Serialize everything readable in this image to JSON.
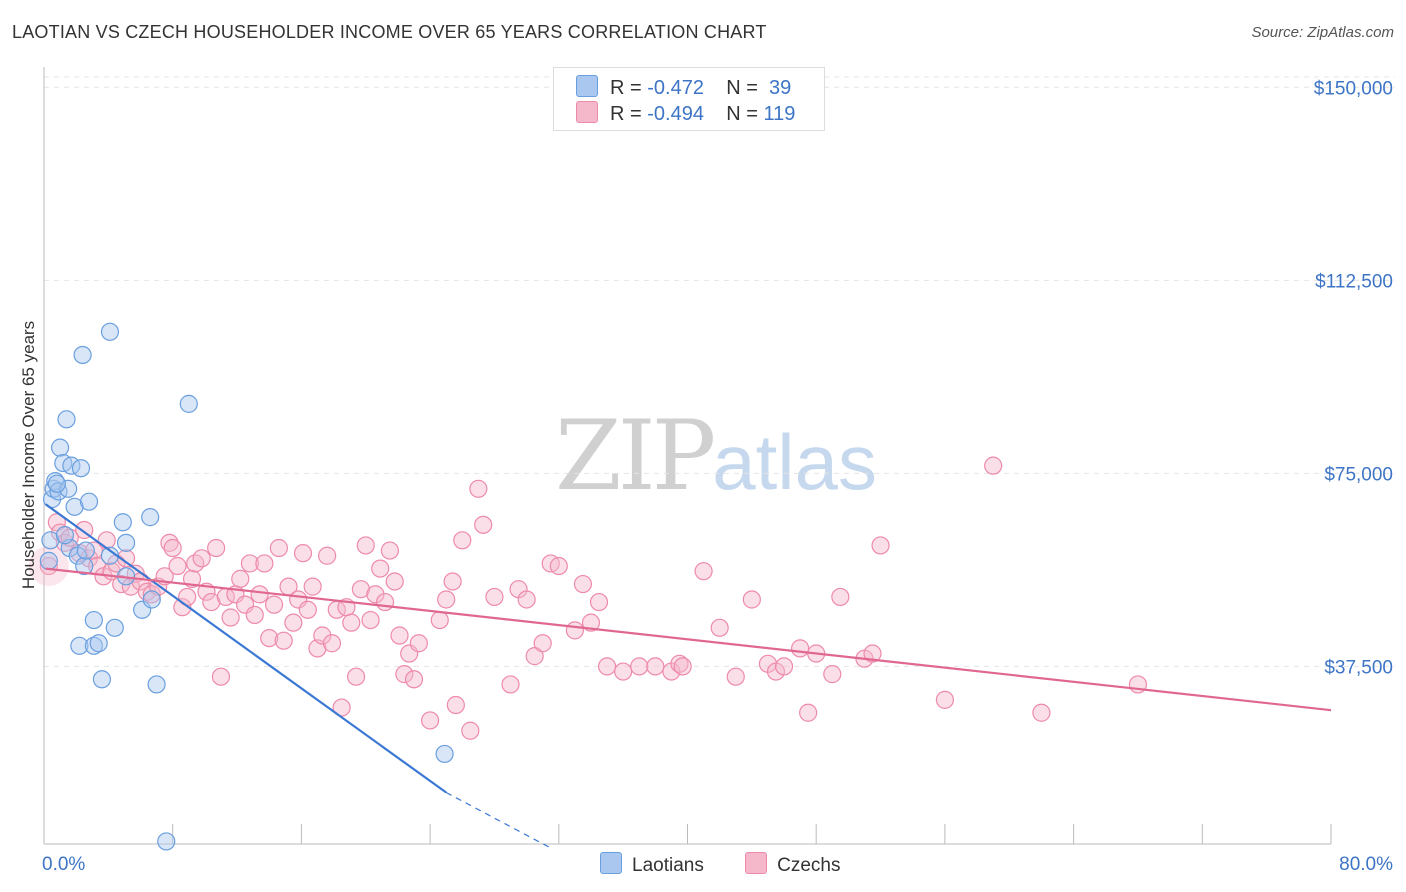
{
  "title": "LAOTIAN VS CZECH HOUSEHOLDER INCOME OVER 65 YEARS CORRELATION CHART",
  "source": "Source: ZipAtlas.com",
  "watermark": {
    "zip": "ZIP",
    "atlas": "atlas"
  },
  "legend": {
    "rows": [
      {
        "r_label": "R = ",
        "r_value": "-0.472",
        "n_label": "N = ",
        "n_value": "39",
        "color": "#a9c7ef"
      },
      {
        "r_label": "R = ",
        "r_value": "-0.494",
        "n_label": "N = ",
        "n_value": "119",
        "color": "#f5b8cb"
      }
    ]
  },
  "chart_data": {
    "type": "scatter",
    "title": "LAOTIAN VS CZECH HOUSEHOLDER INCOME OVER 65 YEARS CORRELATION CHART",
    "xlabel": "",
    "ylabel": "Householder Income Over 65 years",
    "xlim": [
      0,
      80
    ],
    "ylim": [
      3000,
      152000
    ],
    "x_tick_labels": [
      "0.0%",
      "80.0%"
    ],
    "y_ticks": [
      37500,
      75000,
      112500,
      150000
    ],
    "y_tick_labels": [
      "$37,500",
      "$75,000",
      "$112,500",
      "$150,000"
    ],
    "grid": true,
    "legend_position": "top-center",
    "series": [
      {
        "name": "Laotians",
        "color": "#6a9fdf",
        "fill": "#a9c7ef",
        "line_color": "#3a78d4",
        "trend": {
          "x": [
            0.1,
            25.0
          ],
          "y": [
            69000,
            13000
          ],
          "dashed_to": [
            31.5,
            0
          ]
        },
        "points": [
          [
            0.3,
            58000
          ],
          [
            0.4,
            62000
          ],
          [
            0.5,
            70000
          ],
          [
            0.6,
            72000
          ],
          [
            0.7,
            73500
          ],
          [
            0.9,
            71500
          ],
          [
            1.0,
            80000
          ],
          [
            1.2,
            77000
          ],
          [
            1.4,
            85500
          ],
          [
            1.5,
            72000
          ],
          [
            1.6,
            60500
          ],
          [
            1.7,
            76500
          ],
          [
            1.9,
            68500
          ],
          [
            2.1,
            59000
          ],
          [
            2.2,
            41500
          ],
          [
            2.3,
            76000
          ],
          [
            2.4,
            98000
          ],
          [
            2.5,
            57000
          ],
          [
            2.8,
            69500
          ],
          [
            3.1,
            41500
          ],
          [
            3.1,
            46500
          ],
          [
            3.4,
            42000
          ],
          [
            3.6,
            35000
          ],
          [
            4.1,
            59000
          ],
          [
            4.1,
            102500
          ],
          [
            4.4,
            45000
          ],
          [
            4.9,
            65500
          ],
          [
            5.1,
            61500
          ],
          [
            5.1,
            55000
          ],
          [
            6.1,
            48500
          ],
          [
            6.6,
            66500
          ],
          [
            6.7,
            50500
          ],
          [
            7.0,
            34000
          ],
          [
            7.6,
            3500
          ],
          [
            9.0,
            88500
          ],
          [
            24.9,
            20500
          ],
          [
            1.3,
            63000
          ],
          [
            0.8,
            73000
          ],
          [
            2.6,
            60000
          ]
        ]
      },
      {
        "name": "Czechs",
        "color": "#ee8aa9",
        "fill": "#f5b8cb",
        "line_color": "#e0678f",
        "trend": {
          "x": [
            0.1,
            80.0
          ],
          "y": [
            56500,
            29000
          ]
        },
        "points": [
          [
            0.3,
            57000
          ],
          [
            0.8,
            65500
          ],
          [
            1.0,
            63500
          ],
          [
            1.3,
            61500
          ],
          [
            1.6,
            62500
          ],
          [
            2.2,
            59500
          ],
          [
            2.5,
            64000
          ],
          [
            2.8,
            58500
          ],
          [
            3.1,
            60000
          ],
          [
            3.3,
            57000
          ],
          [
            3.7,
            55000
          ],
          [
            3.9,
            62000
          ],
          [
            4.2,
            56000
          ],
          [
            4.5,
            57500
          ],
          [
            4.8,
            53500
          ],
          [
            5.1,
            58500
          ],
          [
            5.4,
            53000
          ],
          [
            5.7,
            55500
          ],
          [
            6.0,
            54000
          ],
          [
            6.4,
            52000
          ],
          [
            6.7,
            51500
          ],
          [
            7.1,
            53000
          ],
          [
            7.5,
            55000
          ],
          [
            7.8,
            61500
          ],
          [
            8.0,
            60500
          ],
          [
            8.3,
            57000
          ],
          [
            8.6,
            49000
          ],
          [
            8.9,
            51000
          ],
          [
            9.2,
            54500
          ],
          [
            9.4,
            57500
          ],
          [
            9.8,
            58500
          ],
          [
            10.1,
            52000
          ],
          [
            10.4,
            50000
          ],
          [
            10.7,
            60500
          ],
          [
            11.0,
            35500
          ],
          [
            11.3,
            51000
          ],
          [
            11.6,
            47000
          ],
          [
            11.9,
            51500
          ],
          [
            12.2,
            54500
          ],
          [
            12.5,
            49500
          ],
          [
            12.8,
            57500
          ],
          [
            13.1,
            47500
          ],
          [
            13.4,
            51500
          ],
          [
            13.7,
            57500
          ],
          [
            14.0,
            43000
          ],
          [
            14.3,
            49500
          ],
          [
            14.6,
            60500
          ],
          [
            14.9,
            42500
          ],
          [
            15.2,
            53000
          ],
          [
            15.5,
            46000
          ],
          [
            15.8,
            50500
          ],
          [
            16.1,
            59500
          ],
          [
            16.4,
            48500
          ],
          [
            16.7,
            53000
          ],
          [
            17.0,
            41000
          ],
          [
            17.3,
            43500
          ],
          [
            17.6,
            59000
          ],
          [
            17.9,
            42000
          ],
          [
            18.2,
            48500
          ],
          [
            18.5,
            29500
          ],
          [
            18.8,
            49000
          ],
          [
            19.1,
            46000
          ],
          [
            19.4,
            35500
          ],
          [
            19.7,
            52500
          ],
          [
            20.0,
            61000
          ],
          [
            20.3,
            46500
          ],
          [
            20.6,
            51500
          ],
          [
            20.9,
            56500
          ],
          [
            21.2,
            50000
          ],
          [
            21.5,
            60000
          ],
          [
            21.8,
            54000
          ],
          [
            22.1,
            43500
          ],
          [
            22.4,
            36000
          ],
          [
            22.7,
            40000
          ],
          [
            23.0,
            35000
          ],
          [
            23.3,
            42000
          ],
          [
            24.0,
            27000
          ],
          [
            24.6,
            46500
          ],
          [
            25.0,
            50500
          ],
          [
            25.4,
            54000
          ],
          [
            25.6,
            30000
          ],
          [
            26.0,
            62000
          ],
          [
            26.5,
            25000
          ],
          [
            27.0,
            72000
          ],
          [
            27.3,
            65000
          ],
          [
            28.0,
            51000
          ],
          [
            29.0,
            34000
          ],
          [
            29.5,
            52500
          ],
          [
            30.0,
            50500
          ],
          [
            30.5,
            39500
          ],
          [
            31.0,
            42000
          ],
          [
            31.5,
            57500
          ],
          [
            32.0,
            57000
          ],
          [
            33.0,
            44500
          ],
          [
            33.5,
            53500
          ],
          [
            34.0,
            46000
          ],
          [
            34.5,
            50000
          ],
          [
            35.0,
            37500
          ],
          [
            36.0,
            36500
          ],
          [
            37.0,
            37500
          ],
          [
            38.0,
            37500
          ],
          [
            39.0,
            36500
          ],
          [
            39.5,
            38000
          ],
          [
            39.7,
            37500
          ],
          [
            41.0,
            56000
          ],
          [
            42.0,
            45000
          ],
          [
            43.0,
            35500
          ],
          [
            44.0,
            50500
          ],
          [
            45.0,
            38000
          ],
          [
            45.5,
            36500
          ],
          [
            46.0,
            37500
          ],
          [
            47.0,
            41000
          ],
          [
            47.5,
            28500
          ],
          [
            48.0,
            40000
          ],
          [
            49.0,
            36000
          ],
          [
            49.5,
            51000
          ],
          [
            51.0,
            39000
          ],
          [
            51.5,
            40000
          ],
          [
            52.0,
            61000
          ],
          [
            56.0,
            31000
          ],
          [
            59.0,
            76500
          ],
          [
            62.0,
            28500
          ],
          [
            68.0,
            34000
          ]
        ]
      }
    ]
  },
  "bottom_legend": [
    {
      "label": "Laotians",
      "color": "#a9c7ef"
    },
    {
      "label": "Czechs",
      "color": "#f5b8cb"
    }
  ]
}
